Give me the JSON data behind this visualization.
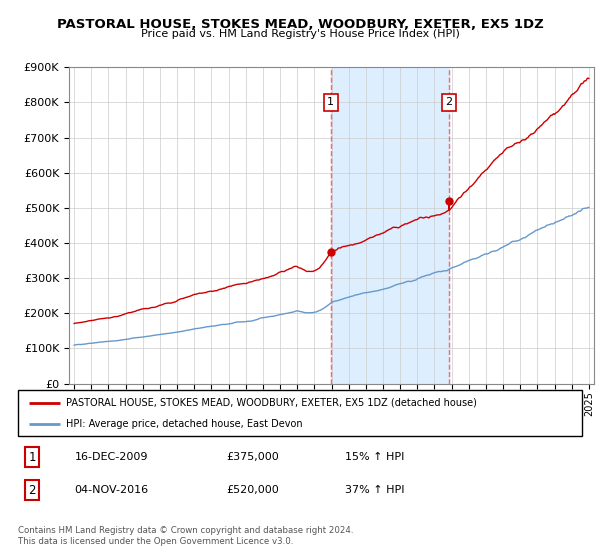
{
  "title": "PASTORAL HOUSE, STOKES MEAD, WOODBURY, EXETER, EX5 1DZ",
  "subtitle": "Price paid vs. HM Land Registry's House Price Index (HPI)",
  "legend_label_red": "PASTORAL HOUSE, STOKES MEAD, WOODBURY, EXETER, EX5 1DZ (detached house)",
  "legend_label_blue": "HPI: Average price, detached house, East Devon",
  "footer": "Contains HM Land Registry data © Crown copyright and database right 2024.\nThis data is licensed under the Open Government Licence v3.0.",
  "sale1_date": "16-DEC-2009",
  "sale1_price": "£375,000",
  "sale1_hpi": "15% ↑ HPI",
  "sale2_date": "04-NOV-2016",
  "sale2_price": "£520,000",
  "sale2_hpi": "37% ↑ HPI",
  "sale1_x": 2009.96,
  "sale1_y": 375000,
  "sale2_x": 2016.84,
  "sale2_y": 520000,
  "xmin": 1995,
  "xmax": 2025,
  "ymin": 0,
  "ymax": 900000,
  "yticks": [
    0,
    100000,
    200000,
    300000,
    400000,
    500000,
    600000,
    700000,
    800000,
    900000
  ],
  "red_color": "#cc0000",
  "blue_color": "#6699cc",
  "shaded_color": "#ddeeff",
  "dashed_line_color": "#ff6666",
  "label_box_color": "#cc0000"
}
